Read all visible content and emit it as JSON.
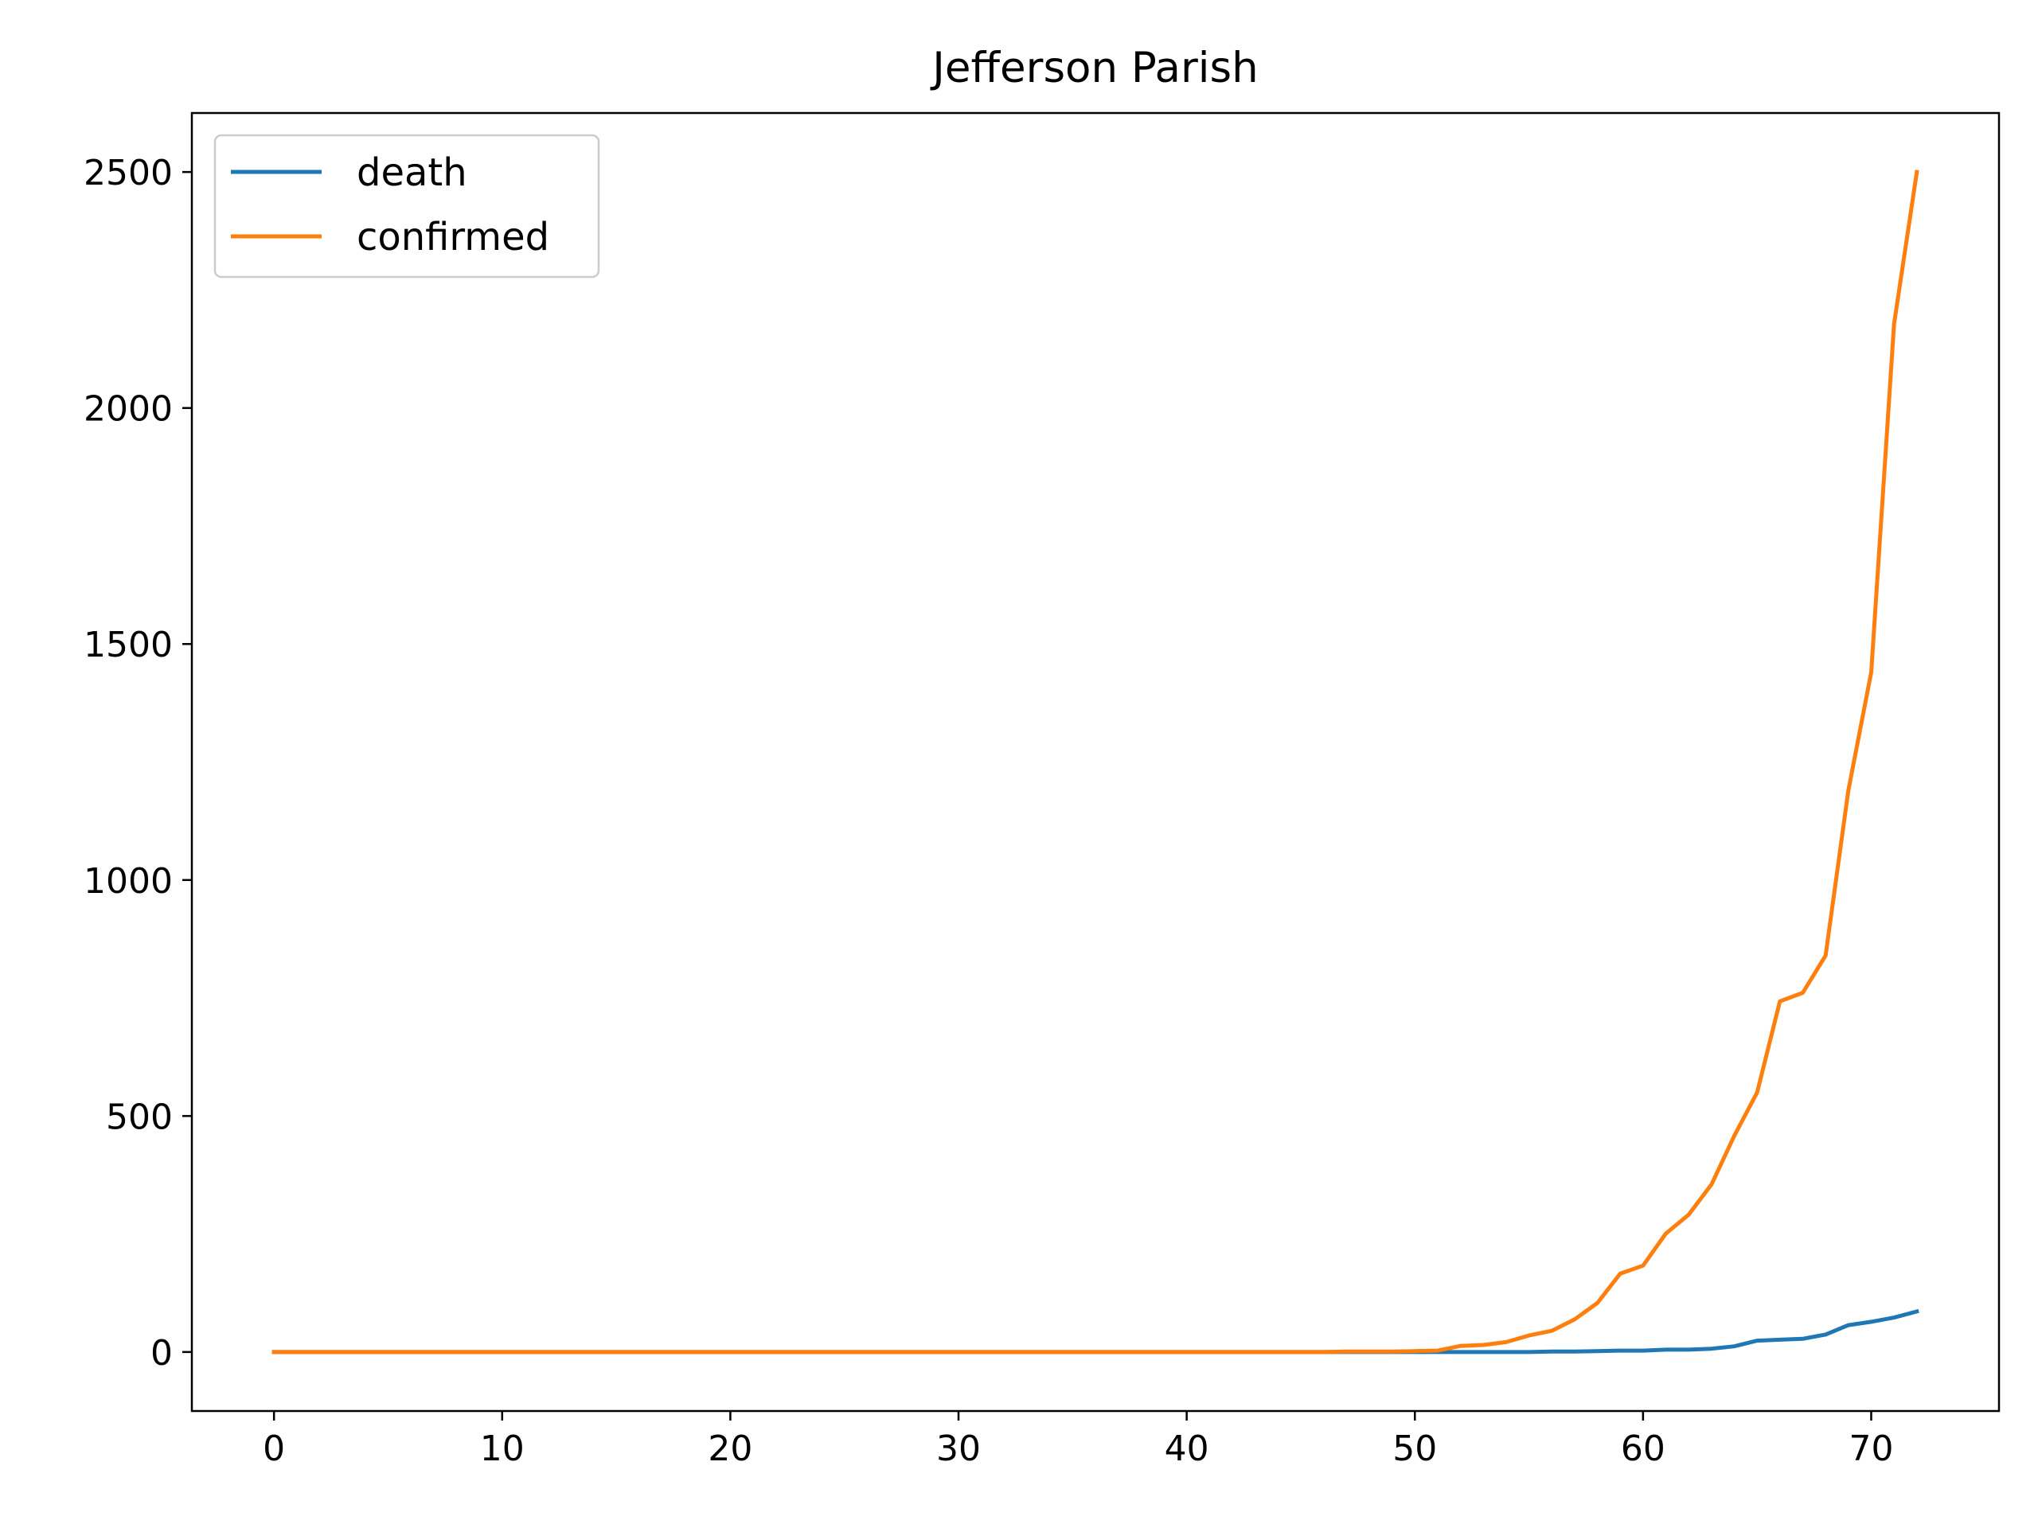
{
  "chart_data": {
    "type": "line",
    "title": "Jefferson Parish",
    "xlabel": "",
    "ylabel": "",
    "xlim": [
      -3.6,
      75.6
    ],
    "ylim": [
      -125,
      2625
    ],
    "xticks": [
      0,
      10,
      20,
      30,
      40,
      50,
      60,
      70
    ],
    "yticks": [
      0,
      500,
      1000,
      1500,
      2000,
      2500
    ],
    "legend_position": "upper-left",
    "grid": false,
    "x": [
      0,
      1,
      2,
      3,
      4,
      5,
      6,
      7,
      8,
      9,
      10,
      11,
      12,
      13,
      14,
      15,
      16,
      17,
      18,
      19,
      20,
      21,
      22,
      23,
      24,
      25,
      26,
      27,
      28,
      29,
      30,
      31,
      32,
      33,
      34,
      35,
      36,
      37,
      38,
      39,
      40,
      41,
      42,
      43,
      44,
      45,
      46,
      47,
      48,
      49,
      50,
      51,
      52,
      53,
      54,
      55,
      56,
      57,
      58,
      59,
      60,
      61,
      62,
      63,
      64,
      65,
      66,
      67,
      68,
      69,
      70,
      71,
      72
    ],
    "series": [
      {
        "name": "death",
        "color": "#1f77b4",
        "values": [
          0,
          0,
          0,
          0,
          0,
          0,
          0,
          0,
          0,
          0,
          0,
          0,
          0,
          0,
          0,
          0,
          0,
          0,
          0,
          0,
          0,
          0,
          0,
          0,
          0,
          0,
          0,
          0,
          0,
          0,
          0,
          0,
          0,
          0,
          0,
          0,
          0,
          0,
          0,
          0,
          0,
          0,
          0,
          0,
          0,
          0,
          0,
          0,
          0,
          0,
          0,
          0,
          0,
          0,
          0,
          0,
          1,
          1,
          2,
          3,
          3,
          5,
          5,
          7,
          12,
          24,
          26,
          28,
          37,
          57,
          64,
          73,
          86
        ]
      },
      {
        "name": "confirmed",
        "color": "#ff7f0e",
        "values": [
          0,
          0,
          0,
          0,
          0,
          0,
          0,
          0,
          0,
          0,
          0,
          0,
          0,
          0,
          0,
          0,
          0,
          0,
          0,
          0,
          0,
          0,
          0,
          0,
          0,
          0,
          0,
          0,
          0,
          0,
          0,
          0,
          0,
          0,
          0,
          0,
          0,
          0,
          0,
          0,
          0,
          0,
          0,
          0,
          0,
          0,
          0,
          1,
          1,
          1,
          2,
          3,
          13,
          15,
          21,
          35,
          45,
          69,
          104,
          166,
          183,
          251,
          291,
          355,
          458,
          550,
          743,
          761,
          840,
          1190,
          1440,
          2178,
          2500
        ]
      }
    ]
  }
}
